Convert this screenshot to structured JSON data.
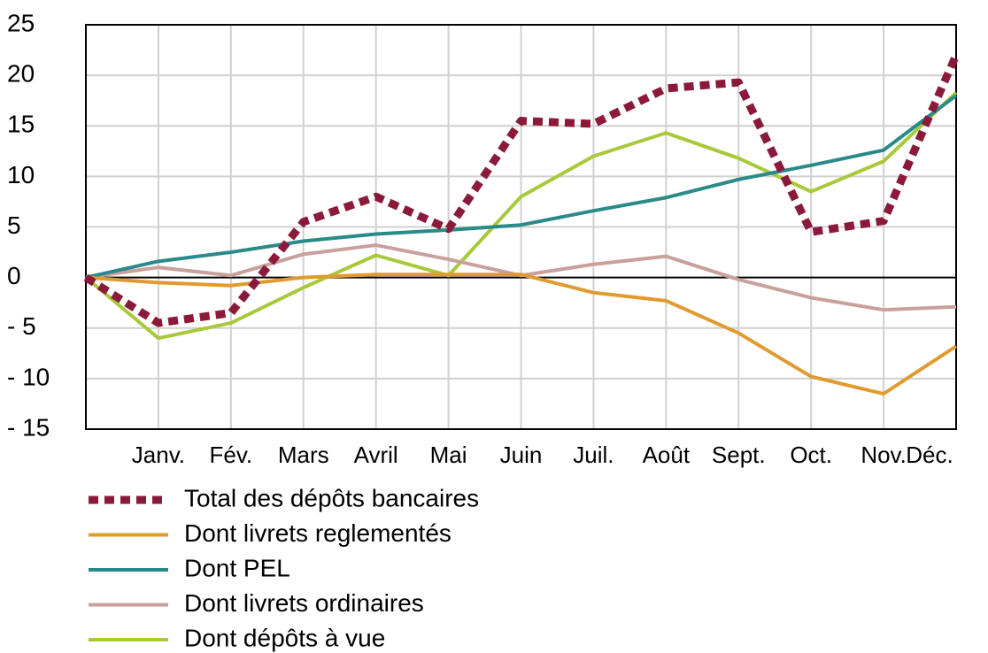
{
  "chart_data": {
    "type": "line",
    "categories": [
      null,
      "Janv.",
      "Fév.",
      "Mars",
      "Avril",
      "Mai",
      "Juin",
      "Juil.",
      "Août",
      "Sept.",
      "Oct.",
      "Nov.",
      "Déc."
    ],
    "series": [
      {
        "name": "Total des dépôts bancaires",
        "color": "#8b1a3a",
        "dash": true,
        "values": [
          0,
          -4.5,
          -3.5,
          5.5,
          8,
          4.8,
          15.5,
          15.2,
          18.7,
          19.3,
          4.5,
          5.6,
          22
        ]
      },
      {
        "name": "Dont livrets reglementés",
        "color": "#e09a30",
        "values": [
          0,
          -0.5,
          -0.8,
          0,
          0.3,
          0.3,
          0.3,
          -1.5,
          -2.3,
          -5.5,
          -9.8,
          -11.5,
          -6.8
        ]
      },
      {
        "name": "Dont PEL",
        "color": "#2a8a8a",
        "values": [
          0,
          1.6,
          2.5,
          3.6,
          4.3,
          4.7,
          5.2,
          6.6,
          7.9,
          9.7,
          11.1,
          12.6,
          18
        ]
      },
      {
        "name": "Dont livrets ordinaires",
        "color": "#c9a09c",
        "values": [
          0,
          1,
          0.2,
          2.3,
          3.2,
          1.8,
          0.2,
          1.3,
          2.1,
          -0.2,
          -2,
          -3.2,
          -2.9
        ]
      },
      {
        "name": "Dont dépôts à vue",
        "color": "#a8c93a",
        "values": [
          0,
          -6,
          -4.5,
          -1,
          2.2,
          0.2,
          8,
          12,
          14.3,
          11.8,
          8.5,
          11.5,
          18.3
        ]
      }
    ],
    "ylim": [
      -15,
      25
    ],
    "yticks": [
      {
        "value": -15,
        "label": "- 15"
      },
      {
        "value": -10,
        "label": "- 10"
      },
      {
        "value": -5,
        "label": "- 5"
      },
      0,
      5,
      10,
      15,
      20,
      25
    ],
    "grid": true,
    "legend": "bottom"
  }
}
